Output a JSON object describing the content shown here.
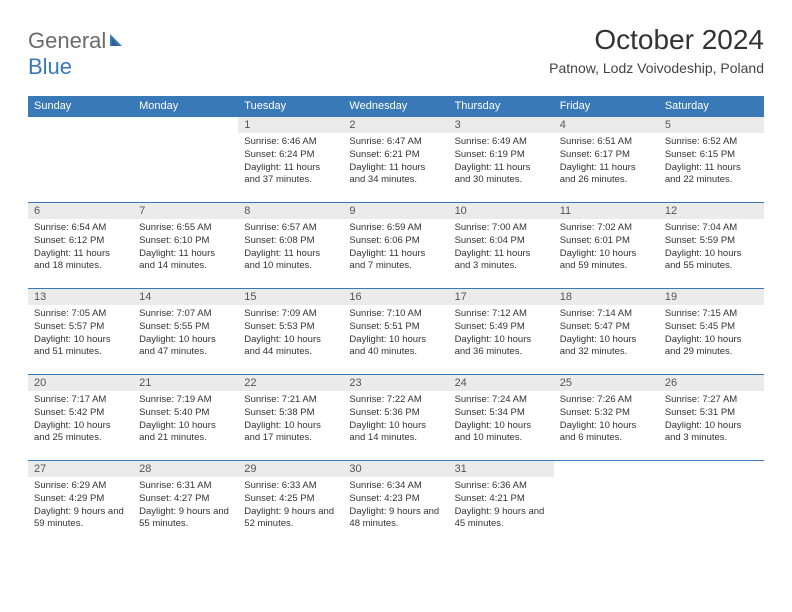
{
  "logo": {
    "text1": "General",
    "text2": "Blue"
  },
  "header": {
    "title": "October 2024",
    "location": "Patnow, Lodz Voivodeship, Poland"
  },
  "colors": {
    "header_bg": "#3a79b7",
    "daynum_bg": "#ebebeb",
    "border": "#3a79b7",
    "text": "#333333",
    "logo_gray": "#6b6b6b",
    "logo_blue": "#3a79b7"
  },
  "daynames": [
    "Sunday",
    "Monday",
    "Tuesday",
    "Wednesday",
    "Thursday",
    "Friday",
    "Saturday"
  ],
  "weeks": [
    [
      null,
      null,
      {
        "n": "1",
        "sr": "Sunrise: 6:46 AM",
        "ss": "Sunset: 6:24 PM",
        "dl": "Daylight: 11 hours and 37 minutes."
      },
      {
        "n": "2",
        "sr": "Sunrise: 6:47 AM",
        "ss": "Sunset: 6:21 PM",
        "dl": "Daylight: 11 hours and 34 minutes."
      },
      {
        "n": "3",
        "sr": "Sunrise: 6:49 AM",
        "ss": "Sunset: 6:19 PM",
        "dl": "Daylight: 11 hours and 30 minutes."
      },
      {
        "n": "4",
        "sr": "Sunrise: 6:51 AM",
        "ss": "Sunset: 6:17 PM",
        "dl": "Daylight: 11 hours and 26 minutes."
      },
      {
        "n": "5",
        "sr": "Sunrise: 6:52 AM",
        "ss": "Sunset: 6:15 PM",
        "dl": "Daylight: 11 hours and 22 minutes."
      }
    ],
    [
      {
        "n": "6",
        "sr": "Sunrise: 6:54 AM",
        "ss": "Sunset: 6:12 PM",
        "dl": "Daylight: 11 hours and 18 minutes."
      },
      {
        "n": "7",
        "sr": "Sunrise: 6:55 AM",
        "ss": "Sunset: 6:10 PM",
        "dl": "Daylight: 11 hours and 14 minutes."
      },
      {
        "n": "8",
        "sr": "Sunrise: 6:57 AM",
        "ss": "Sunset: 6:08 PM",
        "dl": "Daylight: 11 hours and 10 minutes."
      },
      {
        "n": "9",
        "sr": "Sunrise: 6:59 AM",
        "ss": "Sunset: 6:06 PM",
        "dl": "Daylight: 11 hours and 7 minutes."
      },
      {
        "n": "10",
        "sr": "Sunrise: 7:00 AM",
        "ss": "Sunset: 6:04 PM",
        "dl": "Daylight: 11 hours and 3 minutes."
      },
      {
        "n": "11",
        "sr": "Sunrise: 7:02 AM",
        "ss": "Sunset: 6:01 PM",
        "dl": "Daylight: 10 hours and 59 minutes."
      },
      {
        "n": "12",
        "sr": "Sunrise: 7:04 AM",
        "ss": "Sunset: 5:59 PM",
        "dl": "Daylight: 10 hours and 55 minutes."
      }
    ],
    [
      {
        "n": "13",
        "sr": "Sunrise: 7:05 AM",
        "ss": "Sunset: 5:57 PM",
        "dl": "Daylight: 10 hours and 51 minutes."
      },
      {
        "n": "14",
        "sr": "Sunrise: 7:07 AM",
        "ss": "Sunset: 5:55 PM",
        "dl": "Daylight: 10 hours and 47 minutes."
      },
      {
        "n": "15",
        "sr": "Sunrise: 7:09 AM",
        "ss": "Sunset: 5:53 PM",
        "dl": "Daylight: 10 hours and 44 minutes."
      },
      {
        "n": "16",
        "sr": "Sunrise: 7:10 AM",
        "ss": "Sunset: 5:51 PM",
        "dl": "Daylight: 10 hours and 40 minutes."
      },
      {
        "n": "17",
        "sr": "Sunrise: 7:12 AM",
        "ss": "Sunset: 5:49 PM",
        "dl": "Daylight: 10 hours and 36 minutes."
      },
      {
        "n": "18",
        "sr": "Sunrise: 7:14 AM",
        "ss": "Sunset: 5:47 PM",
        "dl": "Daylight: 10 hours and 32 minutes."
      },
      {
        "n": "19",
        "sr": "Sunrise: 7:15 AM",
        "ss": "Sunset: 5:45 PM",
        "dl": "Daylight: 10 hours and 29 minutes."
      }
    ],
    [
      {
        "n": "20",
        "sr": "Sunrise: 7:17 AM",
        "ss": "Sunset: 5:42 PM",
        "dl": "Daylight: 10 hours and 25 minutes."
      },
      {
        "n": "21",
        "sr": "Sunrise: 7:19 AM",
        "ss": "Sunset: 5:40 PM",
        "dl": "Daylight: 10 hours and 21 minutes."
      },
      {
        "n": "22",
        "sr": "Sunrise: 7:21 AM",
        "ss": "Sunset: 5:38 PM",
        "dl": "Daylight: 10 hours and 17 minutes."
      },
      {
        "n": "23",
        "sr": "Sunrise: 7:22 AM",
        "ss": "Sunset: 5:36 PM",
        "dl": "Daylight: 10 hours and 14 minutes."
      },
      {
        "n": "24",
        "sr": "Sunrise: 7:24 AM",
        "ss": "Sunset: 5:34 PM",
        "dl": "Daylight: 10 hours and 10 minutes."
      },
      {
        "n": "25",
        "sr": "Sunrise: 7:26 AM",
        "ss": "Sunset: 5:32 PM",
        "dl": "Daylight: 10 hours and 6 minutes."
      },
      {
        "n": "26",
        "sr": "Sunrise: 7:27 AM",
        "ss": "Sunset: 5:31 PM",
        "dl": "Daylight: 10 hours and 3 minutes."
      }
    ],
    [
      {
        "n": "27",
        "sr": "Sunrise: 6:29 AM",
        "ss": "Sunset: 4:29 PM",
        "dl": "Daylight: 9 hours and 59 minutes."
      },
      {
        "n": "28",
        "sr": "Sunrise: 6:31 AM",
        "ss": "Sunset: 4:27 PM",
        "dl": "Daylight: 9 hours and 55 minutes."
      },
      {
        "n": "29",
        "sr": "Sunrise: 6:33 AM",
        "ss": "Sunset: 4:25 PM",
        "dl": "Daylight: 9 hours and 52 minutes."
      },
      {
        "n": "30",
        "sr": "Sunrise: 6:34 AM",
        "ss": "Sunset: 4:23 PM",
        "dl": "Daylight: 9 hours and 48 minutes."
      },
      {
        "n": "31",
        "sr": "Sunrise: 6:36 AM",
        "ss": "Sunset: 4:21 PM",
        "dl": "Daylight: 9 hours and 45 minutes."
      },
      null,
      null
    ]
  ]
}
